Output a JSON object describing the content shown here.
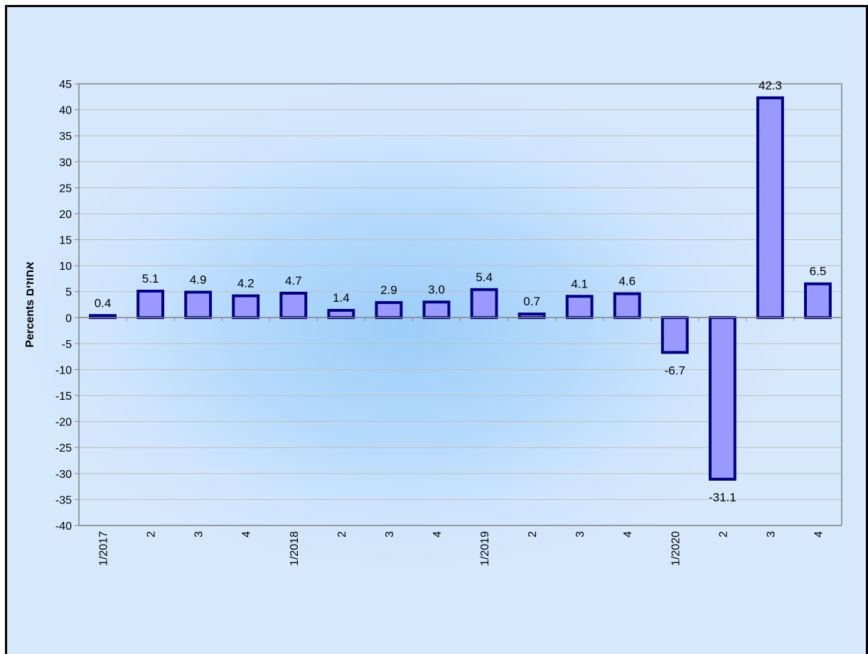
{
  "chart_data": {
    "type": "bar",
    "title": "",
    "ylabel": "Percents אחוזים",
    "xlabel": "",
    "ylim": [
      -40,
      45
    ],
    "ytick_step": 5,
    "grid": true,
    "legend": "none",
    "categories": [
      "1/2017",
      "2",
      "3",
      "4",
      "1/2018",
      "2",
      "3",
      "4",
      "1/2019",
      "2",
      "3",
      "4",
      "1/2020",
      "2",
      "3",
      "4"
    ],
    "values": [
      0.4,
      5.1,
      4.9,
      4.2,
      4.7,
      1.4,
      2.9,
      3.0,
      5.4,
      0.7,
      4.1,
      4.6,
      -6.7,
      -31.1,
      42.3,
      6.5
    ],
    "value_labels": [
      "0.4",
      "5.1",
      "4.9",
      "4.2",
      "4.7",
      "1.4",
      "2.9",
      "3.0",
      "5.4",
      "0.7",
      "4.1",
      "4.6",
      "-6.7",
      "-31.1",
      "42.3",
      "6.5"
    ],
    "colors": {
      "bar_fill": "#9999ff",
      "bar_stroke": "#000080",
      "gridline": "#c0c0c0",
      "axis": "#808080",
      "background": "#d6e8fc"
    }
  }
}
